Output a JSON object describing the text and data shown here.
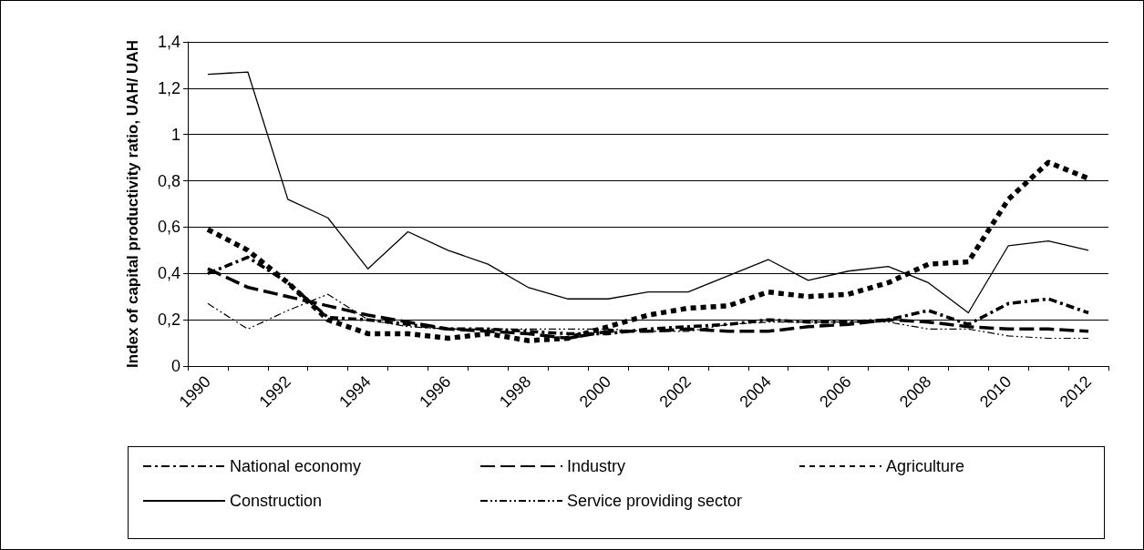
{
  "chart_data": {
    "type": "line",
    "ylabel": "Index of capital productivity ratio, UAH/ UAH",
    "categories": [
      "1990",
      null,
      "1992",
      null,
      "1994",
      null,
      "1996",
      null,
      "1998",
      null,
      "2000",
      null,
      "2002",
      null,
      "2004",
      null,
      "2006",
      null,
      "2008",
      null,
      "2010",
      null,
      "2012"
    ],
    "series": [
      {
        "name": "National economy",
        "color": "#000000",
        "line_style": "dashed",
        "values": [
          0.4,
          0.47,
          0.36,
          0.21,
          0.2,
          0.18,
          0.16,
          0.16,
          0.15,
          0.14,
          0.14,
          0.16,
          0.17,
          0.18,
          0.2,
          0.19,
          0.19,
          0.2,
          0.24,
          0.18,
          0.27,
          0.29,
          0.23
        ]
      },
      {
        "name": "Industry",
        "color": "#000000",
        "line_style": "dashed",
        "values": [
          0.42,
          0.34,
          0.3,
          0.26,
          0.22,
          0.19,
          0.16,
          0.15,
          0.14,
          0.12,
          0.15,
          0.15,
          0.16,
          0.15,
          0.15,
          0.17,
          0.18,
          0.2,
          0.19,
          0.17,
          0.16,
          0.16,
          0.15
        ]
      },
      {
        "name": "Agriculture",
        "color": "#000000",
        "line_style": "dotted",
        "values": [
          0.59,
          0.5,
          0.36,
          0.2,
          0.14,
          0.14,
          0.12,
          0.14,
          0.11,
          0.12,
          0.17,
          0.22,
          0.25,
          0.26,
          0.32,
          0.3,
          0.31,
          0.36,
          0.44,
          0.45,
          0.72,
          0.88,
          0.81
        ]
      },
      {
        "name": "Construction",
        "color": "#000000",
        "line_style": "solid",
        "values": [
          1.26,
          1.27,
          0.72,
          0.64,
          0.42,
          0.58,
          0.5,
          0.44,
          0.34,
          0.29,
          0.29,
          0.32,
          0.32,
          0.39,
          0.46,
          0.37,
          0.41,
          0.43,
          0.36,
          0.23,
          0.52,
          0.54,
          0.5
        ]
      },
      {
        "name": "Service providing sector",
        "color": "#000000",
        "line_style": "dashed",
        "values": [
          0.27,
          0.16,
          0.24,
          0.31,
          0.2,
          0.17,
          0.16,
          0.16,
          0.16,
          0.16,
          0.16,
          0.15,
          0.15,
          0.18,
          0.19,
          0.19,
          0.19,
          0.19,
          0.16,
          0.16,
          0.13,
          0.12,
          0.12
        ]
      }
    ],
    "ylim": [
      0,
      1.4
    ],
    "yticks": [
      0,
      {
        "value": 0.2,
        "label": "0,2"
      },
      {
        "value": 0.4,
        "label": "0,4"
      },
      {
        "value": 0.6,
        "label": "0,6"
      },
      {
        "value": 0.8,
        "label": "0,8"
      },
      1,
      {
        "value": 1.2,
        "label": "1,2"
      },
      {
        "value": 1.4,
        "label": "1,4"
      }
    ],
    "grid": "y",
    "legend": "bottom",
    "marker": "none"
  }
}
